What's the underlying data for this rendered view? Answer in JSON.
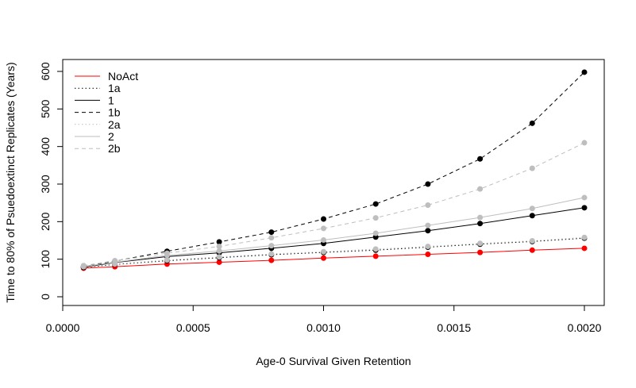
{
  "chart_data": {
    "type": "line",
    "title": "",
    "xlabel": "Age-0 Survival Given Retention",
    "ylabel": "Time to 80% of Psuedoextinct Replicates (Years)",
    "xlim": [
      0.0,
      0.002
    ],
    "ylim": [
      0,
      620
    ],
    "x_ticks": [
      "0.0000",
      "0.0005",
      "0.0010",
      "0.0015",
      "0.0020"
    ],
    "y_ticks": [
      "0",
      "100",
      "200",
      "300",
      "400",
      "500",
      "600"
    ],
    "grid": false,
    "legend_position": "top-left",
    "x": [
      8e-05,
      0.0002,
      0.0004,
      0.0006,
      0.0008,
      0.001,
      0.0012,
      0.0014,
      0.0016,
      0.0018,
      0.002
    ],
    "series": [
      {
        "name": "NoAct",
        "color": "#ff0000",
        "line": "solid",
        "values": [
          76,
          80,
          87,
          92,
          97,
          103,
          108,
          113,
          118,
          124,
          129
        ]
      },
      {
        "name": "1a",
        "color": "#000000",
        "line": "dotted",
        "values": [
          78,
          86,
          96,
          104,
          112,
          118,
          124,
          132,
          140,
          147,
          156
        ]
      },
      {
        "name": "1",
        "color": "#000000",
        "line": "solid",
        "values": [
          79,
          91,
          107,
          117,
          129,
          142,
          159,
          176,
          195,
          216,
          237
        ]
      },
      {
        "name": "1b",
        "color": "#000000",
        "line": "dashed",
        "values": [
          80,
          95,
          121,
          146,
          172,
          207,
          247,
          300,
          367,
          462,
          598
        ]
      },
      {
        "name": "2a",
        "color": "#bebebe",
        "line": "dotted",
        "values": [
          80,
          87,
          98,
          106,
          114,
          120,
          127,
          134,
          142,
          149,
          158
        ]
      },
      {
        "name": "2",
        "color": "#bebebe",
        "line": "solid",
        "values": [
          81,
          92,
          110,
          122,
          136,
          151,
          169,
          190,
          211,
          235,
          264
        ]
      },
      {
        "name": "2b",
        "color": "#bebebe",
        "line": "dashed",
        "values": [
          83,
          96,
          116,
          134,
          157,
          182,
          210,
          244,
          287,
          342,
          410
        ]
      }
    ]
  }
}
